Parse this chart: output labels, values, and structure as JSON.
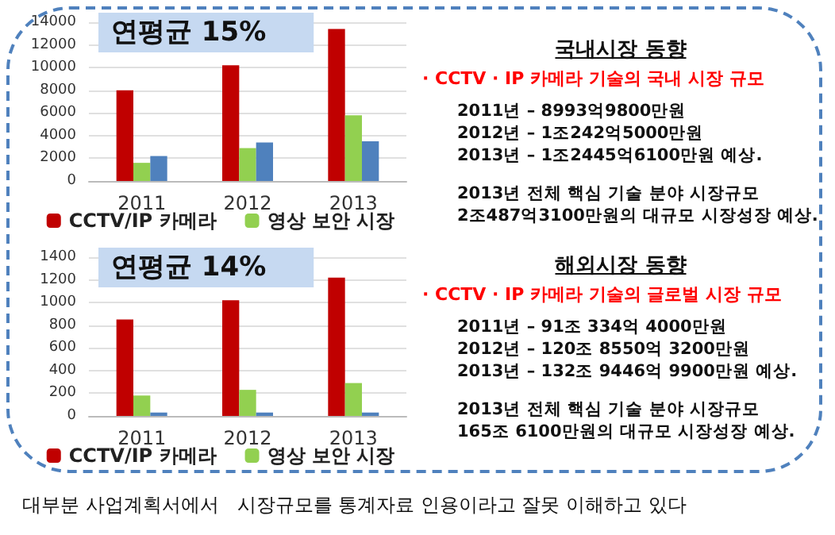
{
  "chart_data": [
    {
      "type": "bar",
      "categories": [
        "2011",
        "2012",
        "2013"
      ],
      "series": [
        {
          "name": "CCTV/IP 카메라",
          "color": "#c00000",
          "values": [
            8000,
            10200,
            13400
          ]
        },
        {
          "name": "영상 보안 시장",
          "color": "#92d050",
          "values": [
            1600,
            2900,
            5800
          ]
        },
        {
          "color": "#4f81bd",
          "values": [
            2200,
            3400,
            3500
          ]
        }
      ],
      "ylim": [
        0,
        14000
      ],
      "yticks": [
        0,
        2000,
        4000,
        6000,
        8000,
        10000,
        12000,
        14000
      ],
      "grid": "y",
      "legend": "bottom",
      "annotations": [
        "연평균 15%"
      ]
    },
    {
      "type": "other",
      "title": "국내시장 동향",
      "subtitle": "·  CCTV · IP 카메라 기술의 국내 시장 규모",
      "annotations": [
        "2011년 – 8993억9800만원",
        "2012년 – 1조242억5000만원",
        "2013년 – 1조2445억6100만원 예상.",
        "2013년 전체 핵심 기술 분야 시장규모",
        "2조487억3100만원의 대규모 시장성장 예상."
      ]
    },
    {
      "type": "bar",
      "categories": [
        "2011",
        "2012",
        "2013"
      ],
      "series": [
        {
          "name": "CCTV/IP 카메라",
          "color": "#c00000",
          "values": [
            850,
            1020,
            1220
          ]
        },
        {
          "name": "영상 보안 시장",
          "color": "#92d050",
          "values": [
            180,
            230,
            290
          ]
        },
        {
          "color": "#4f81bd",
          "values": [
            30,
            30,
            30
          ]
        }
      ],
      "ylim": [
        0,
        1400
      ],
      "yticks": [
        0,
        200,
        400,
        600,
        800,
        1000,
        1200,
        1400
      ],
      "grid": "y",
      "legend": "bottom",
      "annotations": [
        "연평균 14%"
      ]
    },
    {
      "type": "other",
      "title": "해외시장 동향",
      "subtitle": "·  CCTV · IP 카메라 기술의 글로벌 시장 규모",
      "annotations": [
        "2011년 – 91조 334억 4000만원",
        "2012년 – 120조 8550억 3200만원",
        "2013년 – 132조 9446억 9900만원 예상.",
        "2013년 전체 핵심 기술 분야 시장규모",
        "165조 6100만원의 대규모 시장성장 예상."
      ]
    },
    {
      "type": "other",
      "annotations": [
        "대부분 사업계획서에서   시장규모를 통계자료 인용이라고 잘못 이해하고 있다"
      ]
    }
  ]
}
